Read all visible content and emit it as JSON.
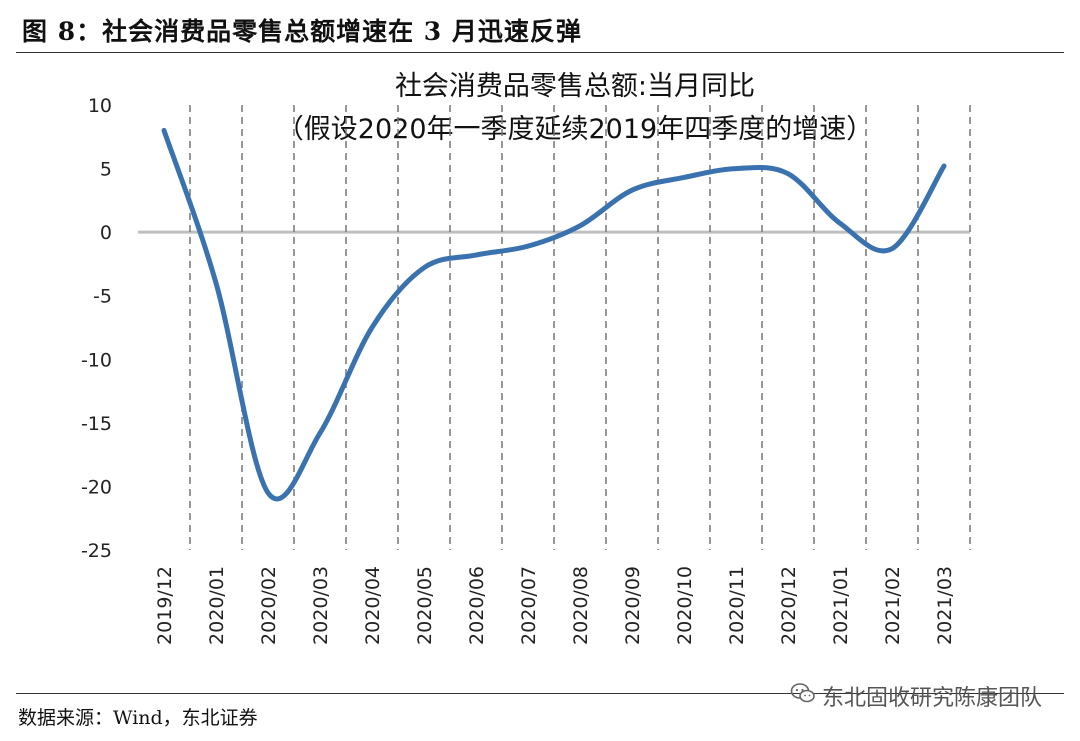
{
  "figure": {
    "title": "图 8：社会消费品零售总额增速在 3 月迅速反弹",
    "source": "数据来源：Wind，东北证券",
    "watermark": "东北固收研究陈康团队",
    "watermark_icon": "wechat-icon"
  },
  "chart_data": {
    "type": "line",
    "title": "社会消费品零售总额:当月同比",
    "subtitle": "（假设2020年一季度延续2019年四季度的增速）",
    "categories": [
      "2019/12",
      "2020/01",
      "2020/02",
      "2020/03",
      "2020/04",
      "2020/05",
      "2020/06",
      "2020/07",
      "2020/08",
      "2020/09",
      "2020/10",
      "2020/11",
      "2020/12",
      "2021/01",
      "2021/02",
      "2021/03"
    ],
    "series": [
      {
        "values": [
          8.0,
          -4.0,
          -20.5,
          -15.8,
          -7.5,
          -2.8,
          -1.8,
          -1.1,
          0.5,
          3.3,
          4.3,
          5.0,
          4.6,
          0.7,
          -1.3,
          5.2
        ]
      }
    ],
    "ylim": [
      -25,
      10
    ],
    "yticks": [
      10,
      5,
      0,
      -5,
      -10,
      -15,
      -20,
      -25
    ],
    "xlabel": "",
    "ylabel": "",
    "grid": "vertical dashed between categories",
    "legend": "none",
    "colors": {
      "line": "#3A72B0",
      "gridline": "#777777",
      "zero_line": "#BFBFBF"
    }
  }
}
